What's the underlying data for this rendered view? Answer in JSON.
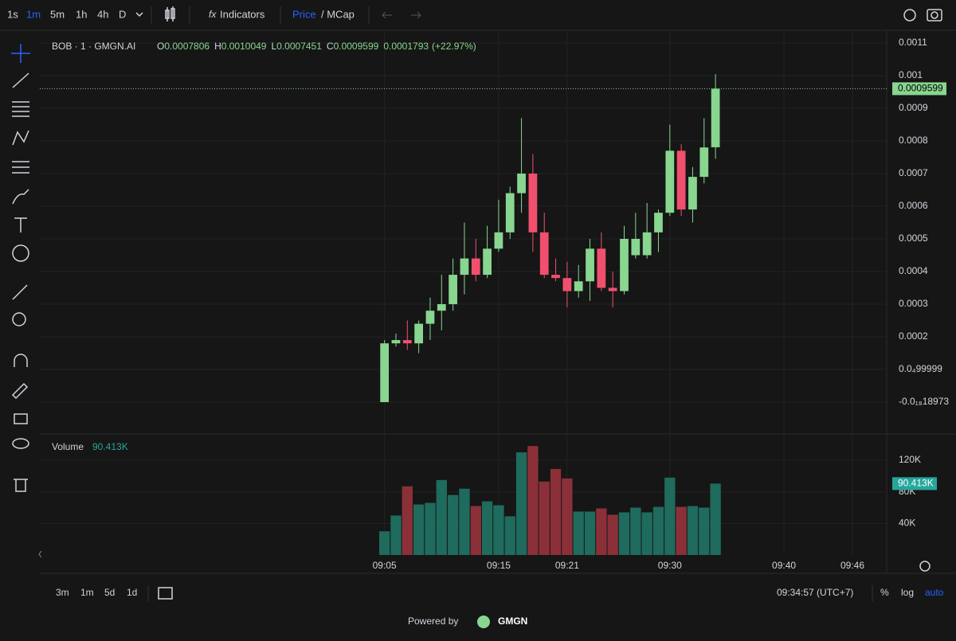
{
  "toolbar": {
    "intervals": [
      "1s",
      "1m",
      "5m",
      "1h",
      "4h",
      "D"
    ],
    "indicators": "Indicators",
    "price": "Price",
    "mcap": "/ MCap"
  },
  "legend": {
    "symbol": "BOB · 1 · GMGN.AI",
    "o": "O",
    "h": "H",
    "l": "L",
    "c": "C",
    "change": 0.0001793,
    "change_pct": "(+22.97%)",
    "volume_title": "Volume"
  },
  "bottom_bar": {
    "ranges": [
      "3m",
      "1m",
      "5d",
      "1d"
    ],
    "clock": "09:34:57 (UTC+7)",
    "percent": "%",
    "log": "log",
    "auto": "auto"
  },
  "footer": {
    "powered": "Powered by",
    "brand": "GMGN"
  },
  "chart_data": {
    "type": "candlestick",
    "up_color": "#88d68f",
    "down_color": "#f0506e",
    "volume_up_color": "#1f6b5e",
    "volume_down_color": "#8b3039",
    "x": [
      5,
      6,
      7,
      8,
      9,
      10,
      11,
      12,
      13,
      14,
      15,
      16,
      17,
      18,
      19,
      20,
      21,
      22,
      23,
      24,
      25,
      26,
      27,
      28,
      29,
      30,
      31,
      32,
      33,
      34
    ],
    "open": [
      0.0,
      0.00018,
      0.00019,
      0.00018,
      0.00024,
      0.00028,
      0.0003,
      0.00039,
      0.00044,
      0.00039,
      0.00047,
      0.00052,
      0.00064,
      0.0007,
      0.00052,
      0.00039,
      0.00038,
      0.00034,
      0.00037,
      0.00047,
      0.00035,
      0.00034,
      0.00045,
      0.00045,
      0.00052,
      0.00058,
      0.00077,
      0.00059,
      0.00069,
      0.0007806
    ],
    "high": [
      0.00019,
      0.00021,
      0.00025,
      0.00025,
      0.00032,
      0.00039,
      0.00044,
      0.00055,
      0.0005,
      0.00054,
      0.00062,
      0.00066,
      0.00087,
      0.00076,
      0.00058,
      0.00044,
      0.00043,
      0.00042,
      0.0005,
      0.00052,
      0.0004,
      0.00054,
      0.00058,
      0.00061,
      0.00059,
      0.00085,
      0.00079,
      0.00072,
      0.00087,
      0.0010049
    ],
    "low": [
      0.0,
      0.00017,
      0.00016,
      0.00015,
      0.00019,
      0.00022,
      0.00028,
      0.00033,
      0.00037,
      0.00038,
      0.00046,
      0.0005,
      0.00058,
      0.00046,
      0.00038,
      0.00037,
      0.00029,
      0.00032,
      0.00031,
      0.00034,
      0.00029,
      0.00033,
      0.00044,
      0.00044,
      0.00046,
      0.00057,
      0.00057,
      0.00055,
      0.00067,
      0.0007451
    ],
    "close": [
      0.00018,
      0.00019,
      0.00018,
      0.00024,
      0.00028,
      0.0003,
      0.00039,
      0.00044,
      0.00039,
      0.00047,
      0.00052,
      0.00064,
      0.0007,
      0.00052,
      0.00039,
      0.00038,
      0.00034,
      0.00037,
      0.00047,
      0.00035,
      0.00034,
      0.0005,
      0.0005,
      0.00052,
      0.00058,
      0.00077,
      0.00059,
      0.00069,
      0.00078,
      0.0009599
    ],
    "volume": [
      30000,
      50000,
      87000,
      64000,
      66000,
      95000,
      76000,
      84000,
      62000,
      68000,
      63000,
      49000,
      130000,
      138000,
      93000,
      109000,
      97000,
      55000,
      55000,
      59000,
      51000,
      54000,
      60000,
      54000,
      61000,
      98000,
      61000,
      62000,
      60000,
      90413
    ],
    "volume_last_label": "90.413K",
    "xlim": [
      -25.2,
      49
    ],
    "xticks": [
      {
        "value": 5,
        "label": "09:05"
      },
      {
        "value": 15,
        "label": "09:15"
      },
      {
        "value": 21,
        "label": "09:21"
      },
      {
        "value": 30,
        "label": "09:30"
      },
      {
        "value": 40,
        "label": "09:40"
      },
      {
        "value": 46,
        "label": "09:46"
      }
    ],
    "ylim": [
      -9.76e-05,
      0.001139
    ],
    "yticks": [
      0.0011,
      0.001,
      0.0009,
      0.0008,
      0.0007,
      0.0006,
      0.0005,
      0.0004,
      0.0003,
      0.0002,
      {
        "value": 0.0001,
        "label": "0.0₄99999"
      },
      {
        "value": 0,
        "label": "-0.0₁₈18973"
      }
    ],
    "volume_ylim": [
      0,
      153300
    ],
    "volume_ticks": [
      {
        "value": 120000,
        "label": "120K"
      },
      {
        "value": 80000,
        "label": "80K"
      },
      {
        "value": 40000,
        "label": "40K"
      }
    ]
  }
}
